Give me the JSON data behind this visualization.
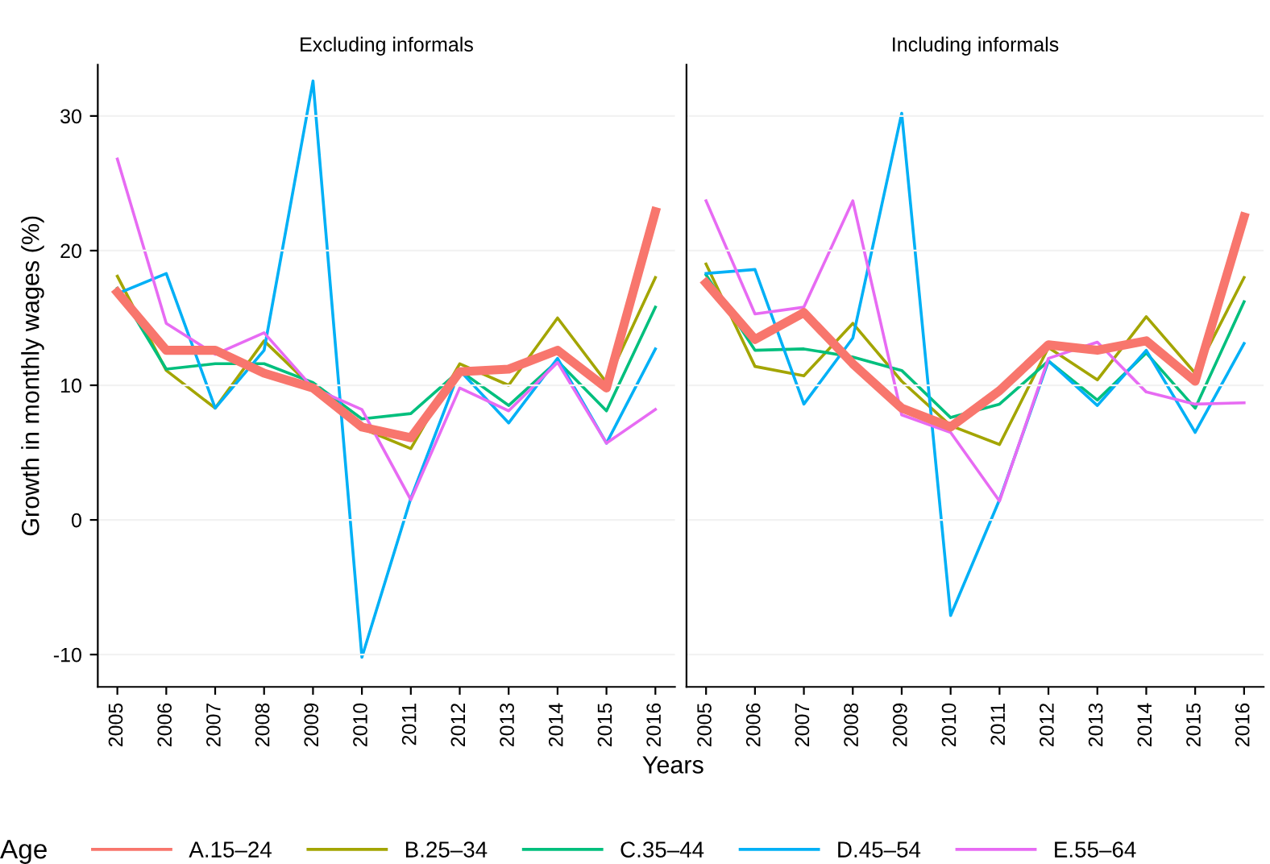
{
  "chart_data": [
    {
      "type": "line",
      "title": "Excluding informals",
      "ylabel": "Growth in monthly wages (%)",
      "xlabel": "Years",
      "legend_title": "Age",
      "legend": "bottom",
      "grid": "y",
      "categories": [
        "2005",
        "2006",
        "2007",
        "2008",
        "2009",
        "2010",
        "2011",
        "2012",
        "2013",
        "2014",
        "2015",
        "2016"
      ],
      "ylim": [
        -12.4,
        33.8
      ],
      "yticks": [
        -10,
        0,
        10,
        20,
        30
      ],
      "series": [
        {
          "name": "A.15–24",
          "color": "#f8766d",
          "values": [
            16.9,
            12.6,
            12.6,
            10.9,
            9.8,
            6.9,
            6.1,
            11.0,
            11.2,
            12.6,
            9.8,
            22.9
          ]
        },
        {
          "name": "B.25–34",
          "color": "#a3a500",
          "values": [
            18.1,
            11.1,
            8.3,
            13.3,
            9.8,
            6.8,
            5.3,
            11.6,
            10.0,
            15.0,
            10.2,
            18.0
          ]
        },
        {
          "name": "C.35–44",
          "color": "#00bf7d",
          "values": [
            17.2,
            11.2,
            11.6,
            11.6,
            10.2,
            7.5,
            7.9,
            11.1,
            8.5,
            11.8,
            8.1,
            15.8
          ]
        },
        {
          "name": "D.45–54",
          "color": "#00b0f6",
          "values": [
            16.8,
            18.3,
            8.3,
            12.6,
            32.6,
            -10.2,
            1.6,
            11.1,
            7.2,
            12.0,
            5.7,
            12.7
          ]
        },
        {
          "name": "E.55–64",
          "color": "#e76bf3",
          "values": [
            26.8,
            14.6,
            12.3,
            13.9,
            9.8,
            8.2,
            1.5,
            9.8,
            8.1,
            11.7,
            5.7,
            8.2
          ]
        }
      ]
    },
    {
      "type": "line",
      "title": "Including informals",
      "grid": "y",
      "tick_labels": "x",
      "categories": [
        "2005",
        "2006",
        "2007",
        "2008",
        "2009",
        "2010",
        "2011",
        "2012",
        "2013",
        "2014",
        "2015",
        "2016"
      ],
      "ylim": [
        -12.4,
        33.8
      ],
      "yticks": [
        -10,
        0,
        10,
        20,
        30
      ],
      "series": [
        {
          "color": "#f8766d",
          "values": [
            17.6,
            13.4,
            15.4,
            11.6,
            8.3,
            6.9,
            9.6,
            13.0,
            12.6,
            13.3,
            10.3,
            22.5
          ]
        },
        {
          "color": "#a3a500",
          "values": [
            19.0,
            11.4,
            10.7,
            14.6,
            10.3,
            7.0,
            5.6,
            12.8,
            10.4,
            15.1,
            10.9,
            18.0
          ]
        },
        {
          "color": "#00bf7d",
          "values": [
            18.2,
            12.6,
            12.7,
            12.1,
            11.1,
            7.6,
            8.6,
            11.8,
            8.9,
            12.4,
            8.3,
            16.2
          ]
        },
        {
          "color": "#00b0f6",
          "values": [
            18.3,
            18.6,
            8.6,
            13.5,
            30.2,
            -7.1,
            1.5,
            11.8,
            8.5,
            12.6,
            6.5,
            13.1
          ]
        },
        {
          "color": "#e76bf3",
          "values": [
            23.7,
            15.3,
            15.8,
            23.7,
            7.8,
            6.5,
            1.4,
            12.0,
            13.2,
            9.5,
            8.6,
            8.7
          ]
        }
      ]
    }
  ]
}
